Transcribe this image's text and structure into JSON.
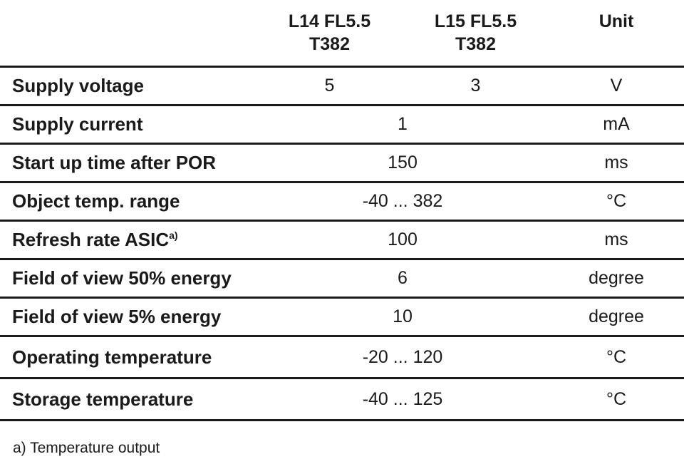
{
  "table": {
    "headers": {
      "param": "",
      "col1_line1": "L14 FL5.5",
      "col1_line2": "T382",
      "col2_line1": "L15 FL5.5",
      "col2_line2": "T382",
      "unit": "Unit"
    },
    "rows": [
      {
        "parameter": "Supply voltage",
        "footnote": "",
        "l14": "5",
        "l15": "3",
        "unit": "V"
      },
      {
        "parameter": "Supply current",
        "footnote": "",
        "value": "1",
        "unit": "mA"
      },
      {
        "parameter": "Start up time after POR",
        "footnote": "",
        "value": "150",
        "unit": "ms"
      },
      {
        "parameter": "Object temp. range",
        "footnote": "",
        "value": "-40 ... 382",
        "unit": "°C"
      },
      {
        "parameter": "Refresh rate ASIC",
        "footnote": "a)",
        "value": "100",
        "unit": "ms"
      },
      {
        "parameter": "Field of view 50% energy",
        "footnote": "",
        "value": "6",
        "unit": "degree"
      },
      {
        "parameter": "Field of view 5% energy",
        "footnote": "",
        "value": "10",
        "unit": "degree"
      },
      {
        "parameter": "Operating temperature",
        "footnote": "",
        "value": "-20 ... 120",
        "unit": "°C"
      },
      {
        "parameter": "Storage temperature",
        "footnote": "",
        "value": "-40 ... 125",
        "unit": "°C"
      }
    ]
  },
  "footnote": "a) Temperature output"
}
